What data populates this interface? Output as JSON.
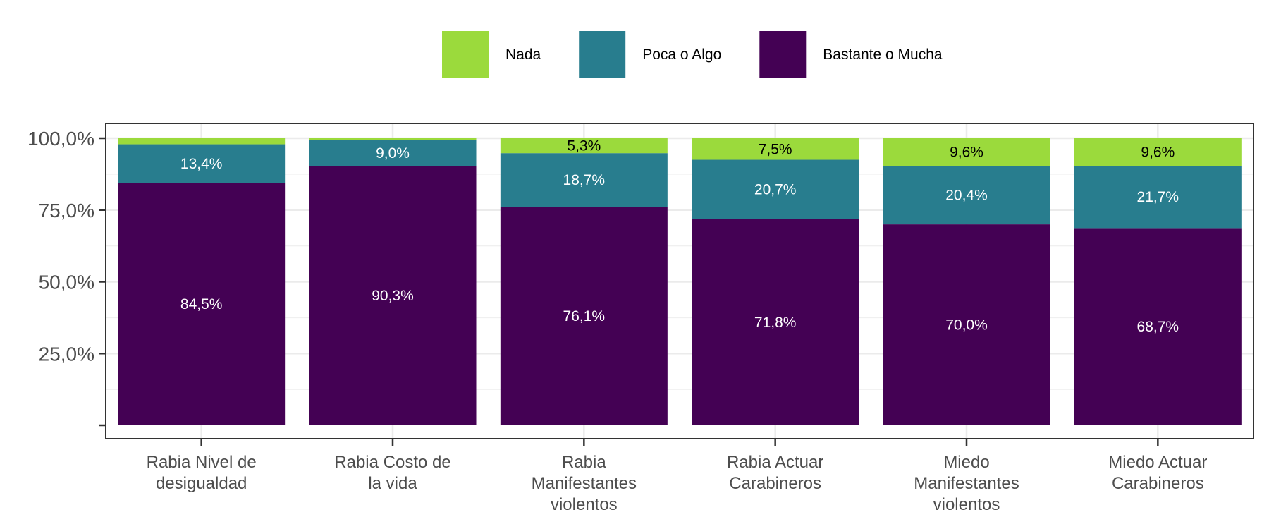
{
  "chart_data": {
    "type": "bar",
    "stacked": true,
    "categories": [
      [
        "Rabia Nivel de",
        "desigualdad"
      ],
      [
        "Rabia Costo de",
        "la vida"
      ],
      [
        "Rabia",
        "Manifestantes",
        "violentos"
      ],
      [
        "Rabia Actuar",
        "Carabineros"
      ],
      [
        "Miedo",
        "Manifestantes",
        "violentos"
      ],
      [
        "Miedo Actuar",
        "Carabineros"
      ]
    ],
    "series": [
      {
        "name": "Bastante o Mucha",
        "color": "#440154",
        "values": [
          84.5,
          90.3,
          76.1,
          71.8,
          70.0,
          68.7
        ],
        "labels": [
          "84,5%",
          "90,3%",
          "76,1%",
          "71,8%",
          "70,0%",
          "68,7%"
        ],
        "label_color": "#ffffff"
      },
      {
        "name": "Poca o Algo",
        "color": "#287D8E",
        "values": [
          13.4,
          9.0,
          18.7,
          20.7,
          20.4,
          21.7
        ],
        "labels": [
          "13,4%",
          "9,0%",
          "18,7%",
          "20,7%",
          "20,4%",
          "21,7%"
        ],
        "label_color": "#ffffff"
      },
      {
        "name": "Nada",
        "color": "#9BDA3C",
        "values": [
          2.1,
          0.7,
          5.3,
          7.5,
          9.6,
          9.6
        ],
        "labels": [
          "",
          "",
          "5,3%",
          "7,5%",
          "9,6%",
          "9,6%"
        ],
        "label_color": "#000000"
      }
    ],
    "legend_order": [
      "Nada",
      "Poca o Algo",
      "Bastante o Mucha"
    ],
    "legend_position": "top",
    "ylim": [
      0,
      100
    ],
    "yticks": [
      25,
      50,
      75,
      100
    ],
    "ytick_labels": [
      "25,0%",
      "50,0%",
      "75,0%",
      "100,0%"
    ],
    "grid": true,
    "title": "",
    "xlabel": "",
    "ylabel": ""
  }
}
